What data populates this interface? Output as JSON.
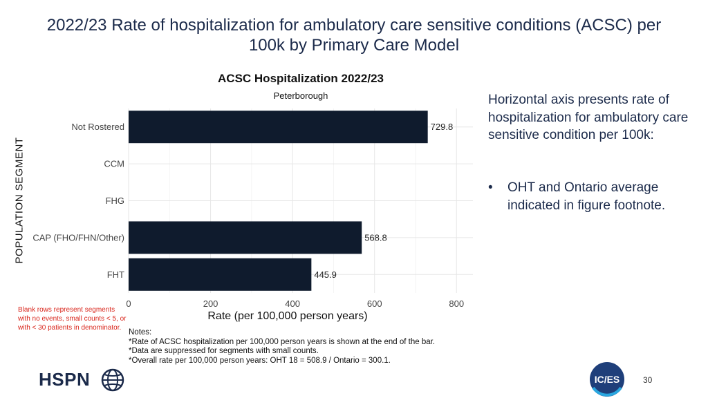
{
  "slide": {
    "title": "2022/23 Rate of hospitalization for ambulatory care sensitive conditions (ACSC) per 100k by Primary Care Model",
    "side_text": "Horizontal axis presents rate of hospitalization for ambulatory care sensitive condition per 100k:",
    "bullet_marker": "•",
    "bullet_text": "OHT and Ontario average indicated in figure footnote.",
    "red_note": "Blank rows represent segments with no events, small counts < 5, or with < 30 patients in denominator.",
    "notes": [
      "Notes:",
      "*Rate of ACSC hospitalization per 100,000 person years is shown at the end of the bar.",
      "*Data are suppressed for segments with small counts.",
      "*Overall rate per 100,000 person years: OHT 18 = 508.9 / Ontario = 300.1."
    ],
    "logo_left": "HSPN",
    "logo_right": "IC/ES",
    "page_number": "30"
  },
  "colors": {
    "bar": "#0f1b2d",
    "title": "#1b2a4a",
    "note_red": "#d9261c",
    "grid": "#e6e6e6"
  },
  "chart_data": {
    "type": "bar",
    "orientation": "horizontal",
    "title": "ACSC Hospitalization 2022/23",
    "subtitle": "Peterborough",
    "xlabel": "Rate (per 100,000 person years)",
    "ylabel": "POPULATION SEGMENT",
    "categories": [
      "Not Rostered",
      "CCM",
      "FHG",
      "CAP (FHO/FHN/Other)",
      "FHT"
    ],
    "values": [
      729.8,
      null,
      null,
      568.8,
      445.9
    ],
    "value_labels": [
      "729.8",
      "",
      "",
      "568.8",
      "445.9"
    ],
    "xlim": [
      0,
      840
    ],
    "xticks": [
      0,
      200,
      400,
      600,
      800
    ],
    "grid": true
  }
}
